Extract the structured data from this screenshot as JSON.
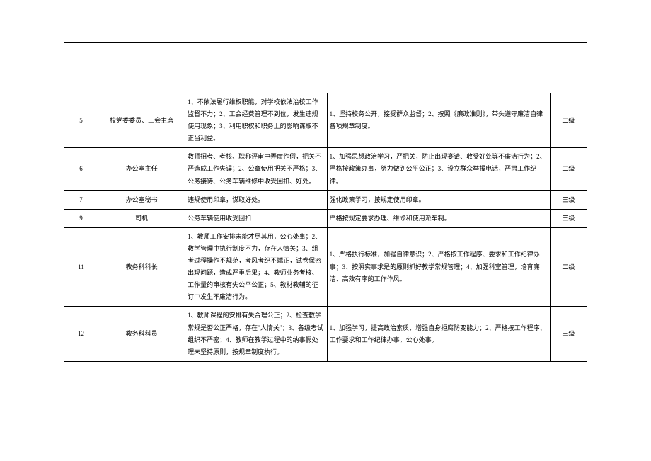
{
  "table": {
    "rows": [
      {
        "idx": "5",
        "role": "校党委委员、工会主席",
        "risk": "1、不依法履行维权职能，对学校依法治校工作监督不力；2、工会经费管理不到位，发生违规使用现象；3、利用职权和职务上的影响谋取不正当利益。",
        "measure": "1、坚持校务公开，接受群众监督；2、按照《廉政准则》，带头遵守廉洁自律各项规章制度。",
        "level": "二级"
      },
      {
        "idx": "6",
        "role": "办公室主任",
        "risk": "教师招考、考核、职称评审中弄虚作假，把关不严造成工作失误；2、公章使用把关不严格；3、公务接待、公务车辆维修中收受回扣、好处。",
        "measure": "1、加强思想政治学习，严把关，防止出现宴请、收受好处等不廉洁行为；2、严格按政策办事，努力做到公平公正；3、设立群众举报电话，严肃工作纪律。",
        "level": "二级"
      },
      {
        "idx": "7",
        "role": "办公室秘书",
        "risk": "违规使用印章，谋取好处。",
        "measure": "强化政策学习，按规定使用印章。",
        "level": "三级"
      },
      {
        "idx": "9",
        "role": "司机",
        "risk": "公务车辆使用收受回扣",
        "measure": "严格按规定要求办理、维修和使用派车制。",
        "level": "三级"
      },
      {
        "idx": "11",
        "role": "教务科科长",
        "risk": "1、教师工作安排未能才尽其用，公心处事；2、教学管理中执行制度不力，存在人情关；3、组考过程操作不规范，考风考纪不端正，试卷保密出现问题，造成严重后果；4、教师业务考核、工作量的审核有失公平公正；5、教材教辅的征订中发生不廉洁行为。",
        "measure": "1、严格执行标准，加强自律意识；2、严格按工作程序、要求和工作纪律办事；3、按照实事求是的原则抓好教学常规管理；4、加强科室管理，培育廉洁、高效有序的工作作风。",
        "level": "二级"
      },
      {
        "idx": "12",
        "role": "教务科科员",
        "risk": "1、教师课程的安排有失合理公正；2、检查教学常规是否公正严格，存在\"人情关\"；3、各级考试组织不严密；4、教师在教学过程中的纳事假处理未坚持原则，按规章制度执行。",
        "measure": "1、加强学习，提高政治素质，增强自身拒腐防变能力；2、严格按工作程序、工作要求和工作纪律办事，公心处事。",
        "level": "三级"
      }
    ]
  }
}
